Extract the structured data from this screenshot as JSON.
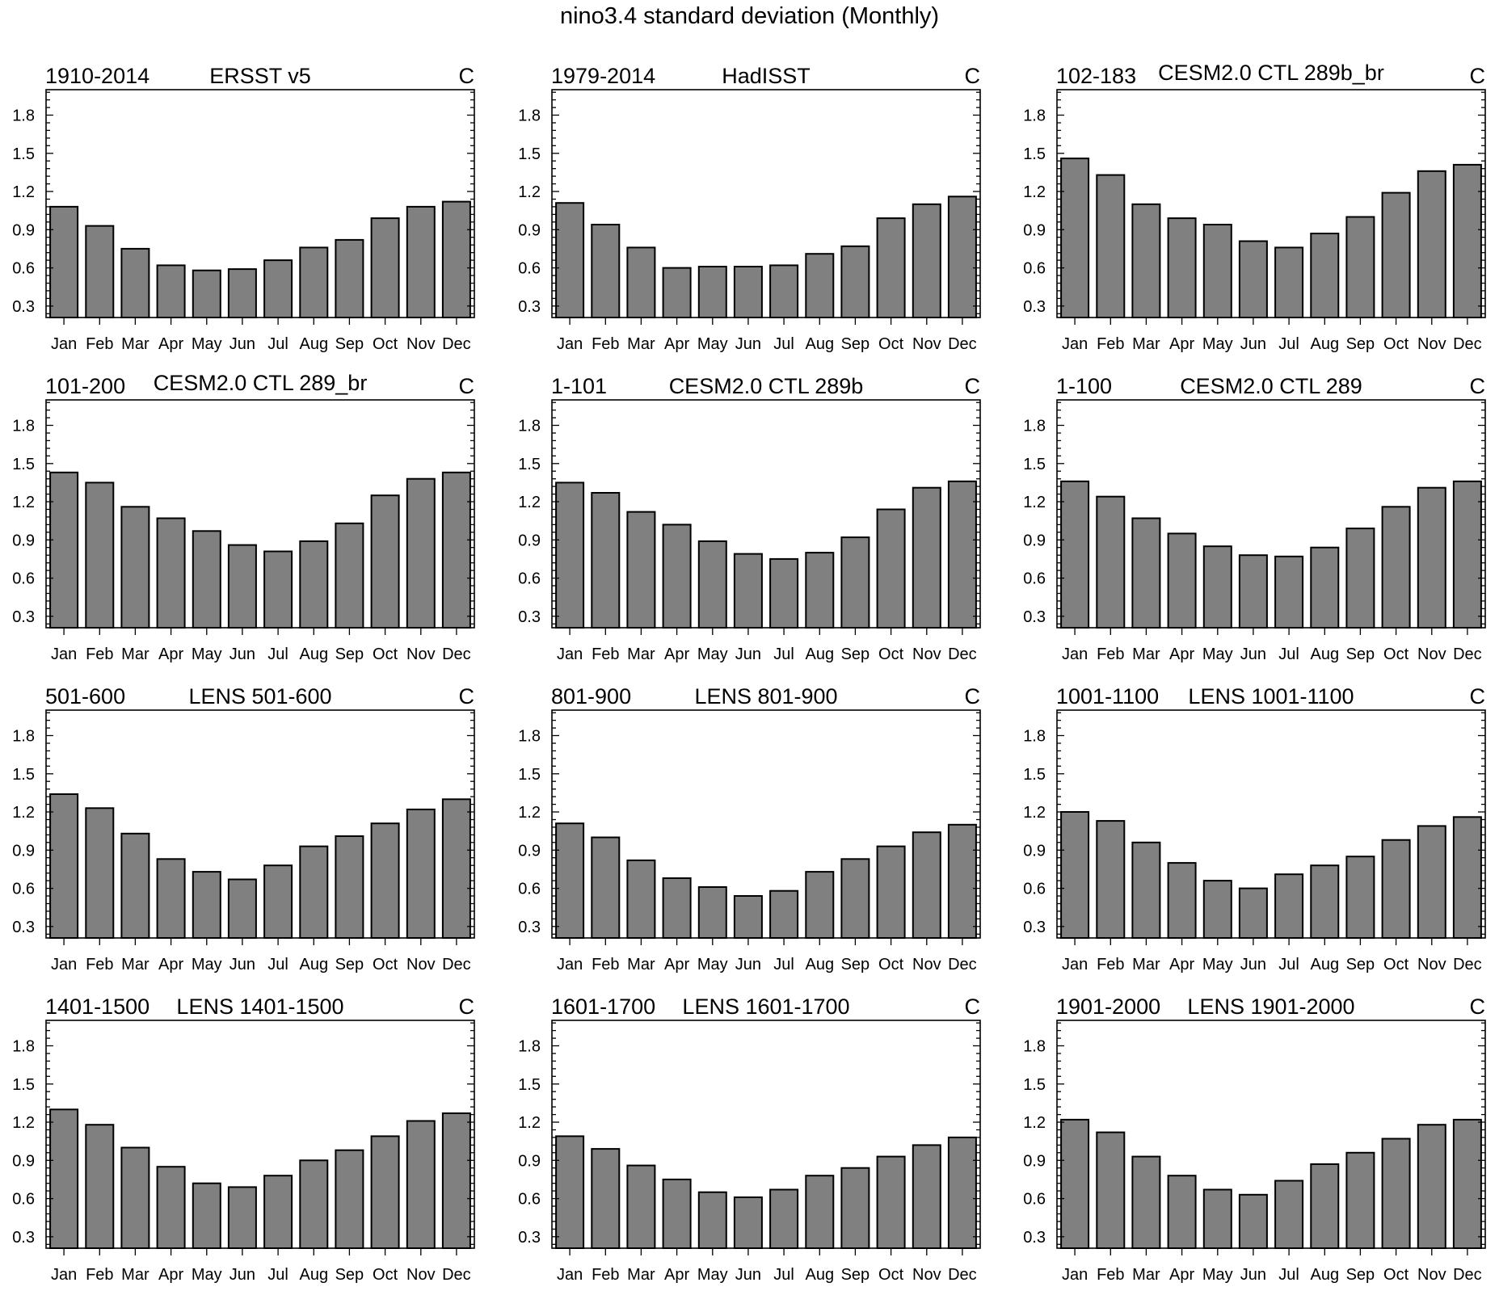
{
  "title": "nino3.4 standard deviation (Monthly)",
  "chart_data": [
    {
      "type": "bar",
      "left_title": "1910-2014",
      "center_title": "ERSST v5",
      "right_title": "C",
      "categories": [
        "Jan",
        "Feb",
        "Mar",
        "Apr",
        "May",
        "Jun",
        "Jul",
        "Aug",
        "Sep",
        "Oct",
        "Nov",
        "Dec"
      ],
      "values": [
        1.08,
        0.93,
        0.75,
        0.62,
        0.58,
        0.59,
        0.66,
        0.76,
        0.82,
        0.99,
        1.08,
        1.12
      ],
      "ylim": [
        0.21,
        2.0
      ],
      "yticks": [
        "0.3",
        "0.6",
        "0.9",
        "1.2",
        "1.5",
        "1.8"
      ]
    },
    {
      "type": "bar",
      "left_title": "1979-2014",
      "center_title": "HadISST",
      "right_title": "C",
      "categories": [
        "Jan",
        "Feb",
        "Mar",
        "Apr",
        "May",
        "Jun",
        "Jul",
        "Aug",
        "Sep",
        "Oct",
        "Nov",
        "Dec"
      ],
      "values": [
        1.11,
        0.94,
        0.76,
        0.6,
        0.61,
        0.61,
        0.62,
        0.71,
        0.77,
        0.99,
        1.1,
        1.16
      ],
      "ylim": [
        0.21,
        2.0
      ],
      "yticks": [
        "0.3",
        "0.6",
        "0.9",
        "1.2",
        "1.5",
        "1.8"
      ]
    },
    {
      "type": "bar",
      "left_title": "102-183",
      "center_title": "CESM2.0 CTL 289b_br",
      "right_title": "C",
      "categories": [
        "Jan",
        "Feb",
        "Mar",
        "Apr",
        "May",
        "Jun",
        "Jul",
        "Aug",
        "Sep",
        "Oct",
        "Nov",
        "Dec"
      ],
      "values": [
        1.46,
        1.33,
        1.1,
        0.99,
        0.94,
        0.81,
        0.76,
        0.87,
        1.0,
        1.19,
        1.36,
        1.41
      ],
      "ylim": [
        0.21,
        2.0
      ],
      "yticks": [
        "0.3",
        "0.6",
        "0.9",
        "1.2",
        "1.5",
        "1.8"
      ]
    },
    {
      "type": "bar",
      "left_title": "101-200",
      "center_title": "CESM2.0 CTL 289_br",
      "right_title": "C",
      "categories": [
        "Jan",
        "Feb",
        "Mar",
        "Apr",
        "May",
        "Jun",
        "Jul",
        "Aug",
        "Sep",
        "Oct",
        "Nov",
        "Dec"
      ],
      "values": [
        1.43,
        1.35,
        1.16,
        1.07,
        0.97,
        0.86,
        0.81,
        0.89,
        1.03,
        1.25,
        1.38,
        1.43
      ],
      "ylim": [
        0.21,
        2.0
      ],
      "yticks": [
        "0.3",
        "0.6",
        "0.9",
        "1.2",
        "1.5",
        "1.8"
      ]
    },
    {
      "type": "bar",
      "left_title": "1-101",
      "center_title": "CESM2.0 CTL 289b",
      "right_title": "C",
      "categories": [
        "Jan",
        "Feb",
        "Mar",
        "Apr",
        "May",
        "Jun",
        "Jul",
        "Aug",
        "Sep",
        "Oct",
        "Nov",
        "Dec"
      ],
      "values": [
        1.35,
        1.27,
        1.12,
        1.02,
        0.89,
        0.79,
        0.75,
        0.8,
        0.92,
        1.14,
        1.31,
        1.36
      ],
      "ylim": [
        0.21,
        2.0
      ],
      "yticks": [
        "0.3",
        "0.6",
        "0.9",
        "1.2",
        "1.5",
        "1.8"
      ]
    },
    {
      "type": "bar",
      "left_title": "1-100",
      "center_title": "CESM2.0 CTL 289",
      "right_title": "C",
      "categories": [
        "Jan",
        "Feb",
        "Mar",
        "Apr",
        "May",
        "Jun",
        "Jul",
        "Aug",
        "Sep",
        "Oct",
        "Nov",
        "Dec"
      ],
      "values": [
        1.36,
        1.24,
        1.07,
        0.95,
        0.85,
        0.78,
        0.77,
        0.84,
        0.99,
        1.16,
        1.31,
        1.36
      ],
      "ylim": [
        0.21,
        2.0
      ],
      "yticks": [
        "0.3",
        "0.6",
        "0.9",
        "1.2",
        "1.5",
        "1.8"
      ]
    },
    {
      "type": "bar",
      "left_title": "501-600",
      "center_title": "LENS 501-600",
      "right_title": "C",
      "categories": [
        "Jan",
        "Feb",
        "Mar",
        "Apr",
        "May",
        "Jun",
        "Jul",
        "Aug",
        "Sep",
        "Oct",
        "Nov",
        "Dec"
      ],
      "values": [
        1.34,
        1.23,
        1.03,
        0.83,
        0.73,
        0.67,
        0.78,
        0.93,
        1.01,
        1.11,
        1.22,
        1.3
      ],
      "ylim": [
        0.21,
        2.0
      ],
      "yticks": [
        "0.3",
        "0.6",
        "0.9",
        "1.2",
        "1.5",
        "1.8"
      ]
    },
    {
      "type": "bar",
      "left_title": "801-900",
      "center_title": "LENS 801-900",
      "right_title": "C",
      "categories": [
        "Jan",
        "Feb",
        "Mar",
        "Apr",
        "May",
        "Jun",
        "Jul",
        "Aug",
        "Sep",
        "Oct",
        "Nov",
        "Dec"
      ],
      "values": [
        1.11,
        1.0,
        0.82,
        0.68,
        0.61,
        0.54,
        0.58,
        0.73,
        0.83,
        0.93,
        1.04,
        1.1
      ],
      "ylim": [
        0.21,
        2.0
      ],
      "yticks": [
        "0.3",
        "0.6",
        "0.9",
        "1.2",
        "1.5",
        "1.8"
      ]
    },
    {
      "type": "bar",
      "left_title": "1001-1100",
      "center_title": "LENS 1001-1100",
      "right_title": "C",
      "categories": [
        "Jan",
        "Feb",
        "Mar",
        "Apr",
        "May",
        "Jun",
        "Jul",
        "Aug",
        "Sep",
        "Oct",
        "Nov",
        "Dec"
      ],
      "values": [
        1.2,
        1.13,
        0.96,
        0.8,
        0.66,
        0.6,
        0.71,
        0.78,
        0.85,
        0.98,
        1.09,
        1.16
      ],
      "ylim": [
        0.21,
        2.0
      ],
      "yticks": [
        "0.3",
        "0.6",
        "0.9",
        "1.2",
        "1.5",
        "1.8"
      ]
    },
    {
      "type": "bar",
      "left_title": "1401-1500",
      "center_title": "LENS 1401-1500",
      "right_title": "C",
      "categories": [
        "Jan",
        "Feb",
        "Mar",
        "Apr",
        "May",
        "Jun",
        "Jul",
        "Aug",
        "Sep",
        "Oct",
        "Nov",
        "Dec"
      ],
      "values": [
        1.3,
        1.18,
        1.0,
        0.85,
        0.72,
        0.69,
        0.78,
        0.9,
        0.98,
        1.09,
        1.21,
        1.27
      ],
      "ylim": [
        0.21,
        2.0
      ],
      "yticks": [
        "0.3",
        "0.6",
        "0.9",
        "1.2",
        "1.5",
        "1.8"
      ]
    },
    {
      "type": "bar",
      "left_title": "1601-1700",
      "center_title": "LENS 1601-1700",
      "right_title": "C",
      "categories": [
        "Jan",
        "Feb",
        "Mar",
        "Apr",
        "May",
        "Jun",
        "Jul",
        "Aug",
        "Sep",
        "Oct",
        "Nov",
        "Dec"
      ],
      "values": [
        1.09,
        0.99,
        0.86,
        0.75,
        0.65,
        0.61,
        0.67,
        0.78,
        0.84,
        0.93,
        1.02,
        1.08
      ],
      "ylim": [
        0.21,
        2.0
      ],
      "yticks": [
        "0.3",
        "0.6",
        "0.9",
        "1.2",
        "1.5",
        "1.8"
      ]
    },
    {
      "type": "bar",
      "left_title": "1901-2000",
      "center_title": "LENS 1901-2000",
      "right_title": "C",
      "categories": [
        "Jan",
        "Feb",
        "Mar",
        "Apr",
        "May",
        "Jun",
        "Jul",
        "Aug",
        "Sep",
        "Oct",
        "Nov",
        "Dec"
      ],
      "values": [
        1.22,
        1.12,
        0.93,
        0.78,
        0.67,
        0.63,
        0.74,
        0.87,
        0.96,
        1.07,
        1.18,
        1.22
      ],
      "ylim": [
        0.21,
        2.0
      ],
      "yticks": [
        "0.3",
        "0.6",
        "0.9",
        "1.2",
        "1.5",
        "1.8"
      ]
    }
  ]
}
